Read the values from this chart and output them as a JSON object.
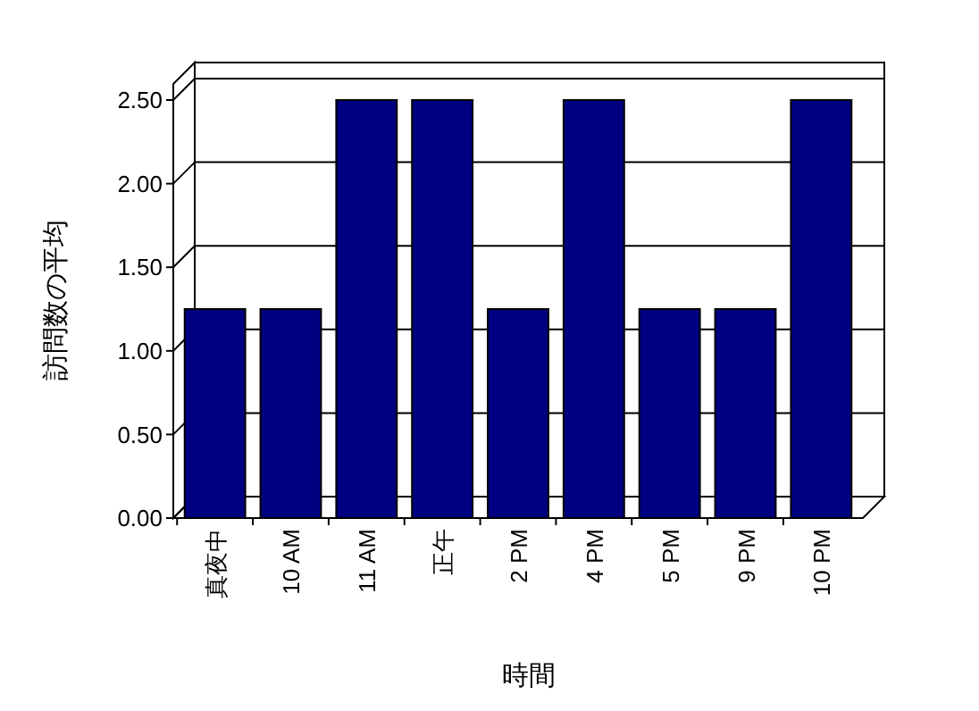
{
  "chart_data": {
    "type": "bar",
    "xlabel": "時間",
    "ylabel": "訪問数の平均",
    "categories": [
      "真夜中",
      "10 AM",
      "11 AM",
      "正午",
      "2 PM",
      "4 PM",
      "5 PM",
      "9 PM",
      "10 PM"
    ],
    "values": [
      1.25,
      1.25,
      2.5,
      2.5,
      1.25,
      2.5,
      1.25,
      1.25,
      2.5
    ],
    "color": "#000080",
    "ylim": [
      0,
      2.5
    ],
    "yticks": [
      {
        "value": 0,
        "label": "0.00"
      },
      {
        "value": 0.5,
        "label": "0.50"
      },
      {
        "value": 1,
        "label": "1.00"
      },
      {
        "value": 1.5,
        "label": "1.50"
      },
      {
        "value": 2,
        "label": "2.00"
      },
      {
        "value": 2.5,
        "label": "2.50"
      }
    ],
    "grid": "y"
  }
}
